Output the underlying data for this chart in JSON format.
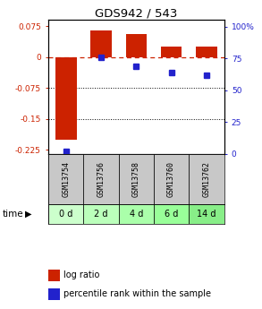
{
  "title": "GDS942 / 543",
  "samples": [
    "GSM13754",
    "GSM13756",
    "GSM13758",
    "GSM13760",
    "GSM13762"
  ],
  "time_labels": [
    "0 d",
    "2 d",
    "4 d",
    "6 d",
    "14 d"
  ],
  "log_ratio": [
    -0.2,
    0.065,
    0.055,
    0.025,
    0.025
  ],
  "percentile": [
    2.0,
    76.0,
    69.0,
    64.0,
    62.0
  ],
  "ylim_left": [
    -0.235,
    0.09
  ],
  "ylim_right": [
    0,
    105
  ],
  "yticks_left": [
    0.075,
    0,
    -0.075,
    -0.15,
    -0.225
  ],
  "yticks_right": [
    100,
    75,
    50,
    25,
    0
  ],
  "bar_color": "#cc2200",
  "dot_color": "#2222cc",
  "zero_line_color": "#cc2200",
  "grid_color": "#000000",
  "bg_color": "#ffffff",
  "sample_box_color": "#c8c8c8",
  "time_colors": [
    "#ccffcc",
    "#bbffbb",
    "#aaffaa",
    "#99ff99",
    "#88ee88"
  ],
  "legend_bar_label": "log ratio",
  "legend_dot_label": "percentile rank within the sample"
}
